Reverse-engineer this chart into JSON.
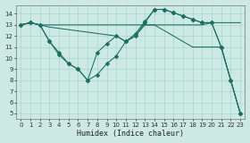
{
  "xlabel": "Humidex (Indice chaleur)",
  "bg_color": "#cce9e4",
  "line_color": "#1a6e60",
  "grid_color": "#a8d5cc",
  "xlim": [
    -0.5,
    23.5
  ],
  "ylim": [
    4.5,
    14.8
  ],
  "xticks": [
    0,
    1,
    2,
    3,
    4,
    5,
    6,
    7,
    8,
    9,
    10,
    11,
    12,
    13,
    14,
    15,
    16,
    17,
    18,
    19,
    20,
    21,
    22,
    23
  ],
  "yticks": [
    5,
    6,
    7,
    8,
    9,
    10,
    11,
    12,
    13,
    14
  ],
  "line1_x": [
    0,
    1,
    2,
    3,
    4,
    5,
    6,
    7,
    8,
    9,
    10,
    11,
    12,
    13,
    14,
    15,
    16,
    17,
    18,
    19,
    20,
    23
  ],
  "line1_y": [
    13,
    13.2,
    13,
    13,
    13,
    13,
    13,
    13,
    13,
    13,
    13,
    13,
    13,
    13,
    13,
    13,
    13,
    13,
    13,
    13,
    13.2,
    13.2
  ],
  "line2_x": [
    0,
    1,
    2,
    3,
    4,
    5,
    6,
    7,
    8,
    9,
    10,
    11,
    12,
    13,
    14,
    15,
    16,
    17,
    18,
    19,
    20,
    21,
    22,
    23
  ],
  "line2_y": [
    13,
    13.2,
    13,
    11.5,
    10.5,
    9.5,
    9.0,
    8.0,
    10.5,
    11.3,
    12.0,
    11.5,
    12.0,
    13.2,
    14.4,
    14.4,
    14.1,
    13.8,
    13.5,
    13.2,
    13.2,
    11.0,
    8.0,
    5.0
  ],
  "line3_x": [
    0,
    1,
    2,
    3,
    4,
    5,
    6,
    7,
    8,
    9,
    10,
    11,
    12,
    13,
    14,
    15,
    16,
    17,
    18,
    19,
    20,
    21,
    22,
    23
  ],
  "line3_y": [
    13,
    13.2,
    13,
    11.5,
    10.3,
    9.5,
    9.0,
    8.0,
    8.5,
    9.5,
    10.2,
    11.5,
    12.2,
    13.3,
    14.4,
    14.4,
    14.1,
    13.8,
    13.5,
    13.2,
    13.2,
    11.0,
    8.0,
    5.0
  ],
  "line4_x": [
    0,
    1,
    2,
    3,
    10,
    11,
    12,
    13,
    14,
    15,
    16,
    17,
    18,
    19,
    20,
    21,
    22,
    23
  ],
  "line4_y": [
    13,
    13.2,
    13,
    12.8,
    12.0,
    11.5,
    12.0,
    13.0,
    13.0,
    12.5,
    12.0,
    11.5,
    11.0,
    11.0,
    11.0,
    11.0,
    8.0,
    5.0
  ]
}
